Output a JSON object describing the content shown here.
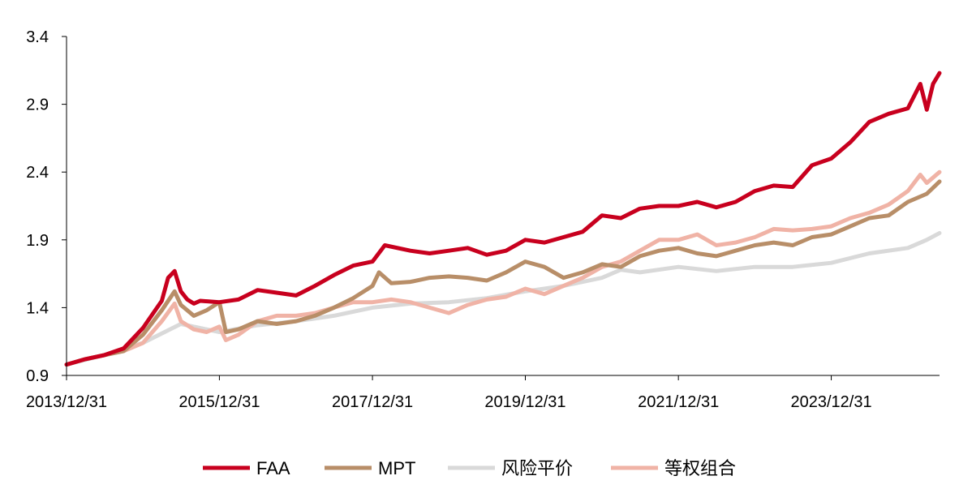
{
  "chart_data": {
    "type": "line",
    "title": "",
    "xlabel": "",
    "ylabel": "",
    "x_ticks": [
      "2013/12/31",
      "2015/12/31",
      "2017/12/31",
      "2019/12/31",
      "2021/12/31",
      "2023/12/31"
    ],
    "x_range": [
      "2013/12/31",
      "2025/05/31"
    ],
    "y_ticks": [
      "0.9",
      "1.4",
      "1.9",
      "2.4",
      "2.9",
      "3.4"
    ],
    "ylim": [
      0.9,
      3.4
    ],
    "grid": false,
    "legend_position": "bottom-center",
    "series": [
      {
        "name": "FAA",
        "color": "#C8001E",
        "points": [
          [
            "2013/12/31",
            0.98
          ],
          [
            "2014/03/31",
            1.02
          ],
          [
            "2014/06/30",
            1.05
          ],
          [
            "2014/09/30",
            1.1
          ],
          [
            "2014/12/31",
            1.25
          ],
          [
            "2015/03/31",
            1.45
          ],
          [
            "2015/04/30",
            1.62
          ],
          [
            "2015/05/31",
            1.67
          ],
          [
            "2015/06/30",
            1.52
          ],
          [
            "2015/07/31",
            1.46
          ],
          [
            "2015/08/31",
            1.43
          ],
          [
            "2015/09/30",
            1.45
          ],
          [
            "2015/12/31",
            1.44
          ],
          [
            "2016/03/31",
            1.46
          ],
          [
            "2016/06/30",
            1.53
          ],
          [
            "2016/09/30",
            1.51
          ],
          [
            "2016/12/31",
            1.49
          ],
          [
            "2017/03/31",
            1.56
          ],
          [
            "2017/06/30",
            1.64
          ],
          [
            "2017/09/30",
            1.71
          ],
          [
            "2017/12/31",
            1.74
          ],
          [
            "2018/02/28",
            1.86
          ],
          [
            "2018/06/30",
            1.82
          ],
          [
            "2018/09/30",
            1.8
          ],
          [
            "2018/12/31",
            1.82
          ],
          [
            "2019/03/31",
            1.84
          ],
          [
            "2019/06/30",
            1.79
          ],
          [
            "2019/09/30",
            1.82
          ],
          [
            "2019/12/31",
            1.9
          ],
          [
            "2020/03/31",
            1.88
          ],
          [
            "2020/06/30",
            1.92
          ],
          [
            "2020/09/30",
            1.96
          ],
          [
            "2020/12/31",
            2.08
          ],
          [
            "2021/03/31",
            2.06
          ],
          [
            "2021/06/30",
            2.13
          ],
          [
            "2021/09/30",
            2.15
          ],
          [
            "2021/12/31",
            2.15
          ],
          [
            "2022/03/31",
            2.18
          ],
          [
            "2022/06/30",
            2.14
          ],
          [
            "2022/09/30",
            2.18
          ],
          [
            "2022/12/31",
            2.26
          ],
          [
            "2023/03/31",
            2.3
          ],
          [
            "2023/06/30",
            2.29
          ],
          [
            "2023/09/30",
            2.45
          ],
          [
            "2023/12/31",
            2.5
          ],
          [
            "2024/03/31",
            2.62
          ],
          [
            "2024/06/30",
            2.77
          ],
          [
            "2024/09/30",
            2.83
          ],
          [
            "2024/12/31",
            2.87
          ],
          [
            "2025/02/28",
            3.05
          ],
          [
            "2025/03/31",
            2.86
          ],
          [
            "2025/04/30",
            3.05
          ],
          [
            "2025/05/31",
            3.13
          ]
        ]
      },
      {
        "name": "MPT",
        "color": "#B88E68",
        "points": [
          [
            "2013/12/31",
            0.98
          ],
          [
            "2014/03/31",
            1.02
          ],
          [
            "2014/06/30",
            1.05
          ],
          [
            "2014/09/30",
            1.08
          ],
          [
            "2014/12/31",
            1.2
          ],
          [
            "2015/03/31",
            1.38
          ],
          [
            "2015/05/31",
            1.52
          ],
          [
            "2015/06/30",
            1.42
          ],
          [
            "2015/08/31",
            1.34
          ],
          [
            "2015/10/31",
            1.38
          ],
          [
            "2015/12/31",
            1.44
          ],
          [
            "2016/01/31",
            1.22
          ],
          [
            "2016/03/31",
            1.24
          ],
          [
            "2016/06/30",
            1.3
          ],
          [
            "2016/09/30",
            1.28
          ],
          [
            "2016/12/31",
            1.3
          ],
          [
            "2017/03/31",
            1.34
          ],
          [
            "2017/06/30",
            1.4
          ],
          [
            "2017/09/30",
            1.47
          ],
          [
            "2017/12/31",
            1.56
          ],
          [
            "2018/01/31",
            1.66
          ],
          [
            "2018/03/31",
            1.58
          ],
          [
            "2018/06/30",
            1.59
          ],
          [
            "2018/09/30",
            1.62
          ],
          [
            "2018/12/31",
            1.63
          ],
          [
            "2019/03/31",
            1.62
          ],
          [
            "2019/06/30",
            1.6
          ],
          [
            "2019/09/30",
            1.66
          ],
          [
            "2019/12/31",
            1.74
          ],
          [
            "2020/03/31",
            1.7
          ],
          [
            "2020/06/30",
            1.62
          ],
          [
            "2020/09/30",
            1.66
          ],
          [
            "2020/12/31",
            1.72
          ],
          [
            "2021/03/31",
            1.7
          ],
          [
            "2021/06/30",
            1.78
          ],
          [
            "2021/09/30",
            1.82
          ],
          [
            "2021/12/31",
            1.84
          ],
          [
            "2022/03/31",
            1.8
          ],
          [
            "2022/06/30",
            1.78
          ],
          [
            "2022/09/30",
            1.82
          ],
          [
            "2022/12/31",
            1.86
          ],
          [
            "2023/03/31",
            1.88
          ],
          [
            "2023/06/30",
            1.86
          ],
          [
            "2023/09/30",
            1.92
          ],
          [
            "2023/12/31",
            1.94
          ],
          [
            "2024/03/31",
            2.0
          ],
          [
            "2024/06/30",
            2.06
          ],
          [
            "2024/09/30",
            2.08
          ],
          [
            "2024/12/31",
            2.18
          ],
          [
            "2025/03/31",
            2.24
          ],
          [
            "2025/05/31",
            2.33
          ]
        ]
      },
      {
        "name": "风险平价",
        "color": "#D9D9D9",
        "points": [
          [
            "2013/12/31",
            0.98
          ],
          [
            "2014/06/30",
            1.05
          ],
          [
            "2014/12/31",
            1.14
          ],
          [
            "2015/06/30",
            1.28
          ],
          [
            "2015/12/31",
            1.22
          ],
          [
            "2016/06/30",
            1.27
          ],
          [
            "2016/12/31",
            1.3
          ],
          [
            "2017/06/30",
            1.34
          ],
          [
            "2017/12/31",
            1.4
          ],
          [
            "2018/06/30",
            1.43
          ],
          [
            "2018/12/31",
            1.44
          ],
          [
            "2019/06/30",
            1.47
          ],
          [
            "2019/12/31",
            1.52
          ],
          [
            "2020/06/30",
            1.56
          ],
          [
            "2020/12/31",
            1.62
          ],
          [
            "2021/03/31",
            1.68
          ],
          [
            "2021/06/30",
            1.66
          ],
          [
            "2021/12/31",
            1.7
          ],
          [
            "2022/06/30",
            1.67
          ],
          [
            "2022/12/31",
            1.7
          ],
          [
            "2023/06/30",
            1.7
          ],
          [
            "2023/12/31",
            1.73
          ],
          [
            "2024/06/30",
            1.8
          ],
          [
            "2024/12/31",
            1.84
          ],
          [
            "2025/03/31",
            1.9
          ],
          [
            "2025/05/31",
            1.95
          ]
        ]
      },
      {
        "name": "等权组合",
        "color": "#F0B3A6",
        "points": [
          [
            "2013/12/31",
            0.98
          ],
          [
            "2014/03/31",
            1.02
          ],
          [
            "2014/06/30",
            1.05
          ],
          [
            "2014/09/30",
            1.08
          ],
          [
            "2014/12/31",
            1.14
          ],
          [
            "2015/03/31",
            1.3
          ],
          [
            "2015/05/31",
            1.43
          ],
          [
            "2015/06/30",
            1.3
          ],
          [
            "2015/08/31",
            1.24
          ],
          [
            "2015/10/31",
            1.22
          ],
          [
            "2015/12/31",
            1.26
          ],
          [
            "2016/01/31",
            1.16
          ],
          [
            "2016/03/31",
            1.2
          ],
          [
            "2016/06/30",
            1.3
          ],
          [
            "2016/09/30",
            1.34
          ],
          [
            "2016/12/31",
            1.34
          ],
          [
            "2017/03/31",
            1.36
          ],
          [
            "2017/06/30",
            1.4
          ],
          [
            "2017/09/30",
            1.44
          ],
          [
            "2017/12/31",
            1.44
          ],
          [
            "2018/03/31",
            1.46
          ],
          [
            "2018/06/30",
            1.44
          ],
          [
            "2018/09/30",
            1.4
          ],
          [
            "2018/12/31",
            1.36
          ],
          [
            "2019/03/31",
            1.42
          ],
          [
            "2019/06/30",
            1.46
          ],
          [
            "2019/09/30",
            1.48
          ],
          [
            "2019/12/31",
            1.54
          ],
          [
            "2020/03/31",
            1.5
          ],
          [
            "2020/06/30",
            1.56
          ],
          [
            "2020/09/30",
            1.62
          ],
          [
            "2020/12/31",
            1.7
          ],
          [
            "2021/03/31",
            1.74
          ],
          [
            "2021/06/30",
            1.82
          ],
          [
            "2021/09/30",
            1.9
          ],
          [
            "2021/12/31",
            1.9
          ],
          [
            "2022/03/31",
            1.94
          ],
          [
            "2022/06/30",
            1.86
          ],
          [
            "2022/09/30",
            1.88
          ],
          [
            "2022/12/31",
            1.92
          ],
          [
            "2023/03/31",
            1.98
          ],
          [
            "2023/06/30",
            1.97
          ],
          [
            "2023/09/30",
            1.98
          ],
          [
            "2023/12/31",
            2.0
          ],
          [
            "2024/03/31",
            2.06
          ],
          [
            "2024/06/30",
            2.1
          ],
          [
            "2024/09/30",
            2.16
          ],
          [
            "2024/12/31",
            2.26
          ],
          [
            "2025/02/28",
            2.38
          ],
          [
            "2025/03/31",
            2.32
          ],
          [
            "2025/05/31",
            2.4
          ]
        ]
      }
    ]
  }
}
